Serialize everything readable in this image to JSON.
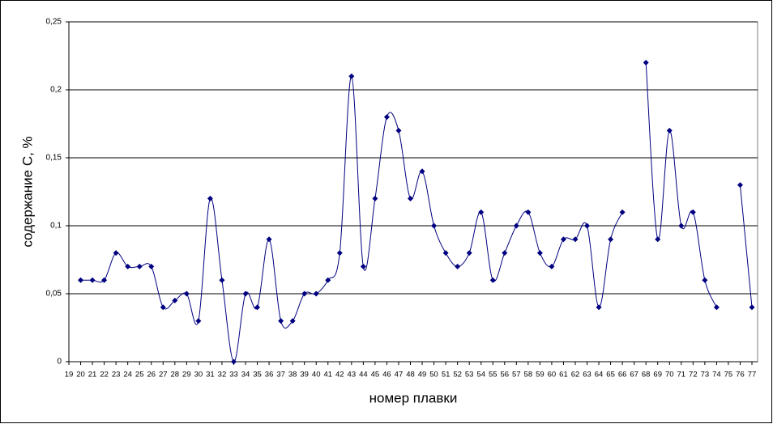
{
  "chart_data": {
    "type": "line",
    "x_label": "номер плавки",
    "y_label": "содержание С, %",
    "categories": [
      "19",
      "20",
      "21",
      "22",
      "23",
      "24",
      "25",
      "26",
      "27",
      "28",
      "29",
      "30",
      "31",
      "32",
      "33",
      "34",
      "35",
      "36",
      "37",
      "38",
      "39",
      "40",
      "41",
      "42",
      "43",
      "44",
      "45",
      "46",
      "47",
      "48",
      "49",
      "50",
      "51",
      "52",
      "53",
      "54",
      "55",
      "56",
      "57",
      "58",
      "59",
      "60",
      "61",
      "62",
      "63",
      "64",
      "65",
      "66",
      "67",
      "68",
      "69",
      "70",
      "71",
      "72",
      "73",
      "74",
      "75",
      "76",
      "77"
    ],
    "series": [
      {
        "name": "C",
        "color": "#000080",
        "values": [
          null,
          0.06,
          0.06,
          0.06,
          0.08,
          0.07,
          0.07,
          0.07,
          0.04,
          0.045,
          0.05,
          0.03,
          0.12,
          0.06,
          0,
          0.05,
          0.04,
          0.09,
          0.03,
          0.03,
          0.05,
          0.05,
          0.06,
          0.08,
          0.21,
          0.07,
          0.12,
          0.18,
          0.17,
          0.12,
          0.14,
          0.1,
          0.08,
          0.07,
          0.08,
          0.11,
          0.06,
          0.08,
          0.1,
          0.11,
          0.08,
          0.07,
          0.09,
          0.09,
          0.1,
          0.04,
          0.09,
          0.11,
          null,
          0.22,
          0.09,
          0.17,
          0.1,
          0.11,
          0.06,
          0.04,
          null,
          0.13,
          0.04
        ]
      }
    ],
    "ylim": [
      0,
      0.25
    ],
    "yticks": [
      0,
      {
        "value": 0.05,
        "label": "0,05"
      },
      {
        "value": 0.1,
        "label": "0,1"
      },
      {
        "value": 0.15,
        "label": "0,15"
      },
      {
        "value": 0.2,
        "label": "0,2"
      },
      {
        "value": 0.25,
        "label": "0,25"
      }
    ],
    "grid": true
  }
}
